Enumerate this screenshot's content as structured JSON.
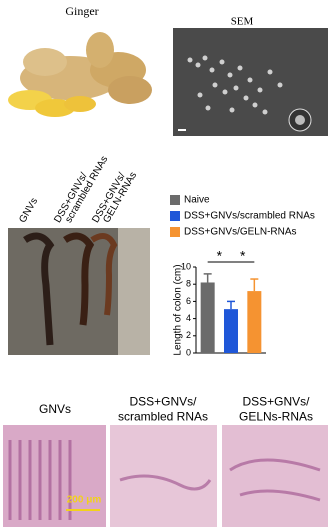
{
  "panels": {
    "ginger_label": "Ginger",
    "sem_label": "SEM",
    "colon_labels": [
      [
        "GNVs"
      ],
      [
        "DSS+GNVs/",
        "scrambled RNAs"
      ],
      [
        "DSS+GNVs/",
        "GELN-RNAs"
      ]
    ],
    "histology_labels": [
      [
        "GNVs"
      ],
      [
        "DSS+GNVs/",
        "scrambled RNAs"
      ],
      [
        "DSS+GNVs/",
        "GELNs-RNAs"
      ]
    ],
    "scale_bar": "200 μm"
  },
  "chart_data": {
    "type": "bar",
    "y_label": "Length of colon (cm)",
    "categories": [
      null
    ],
    "series": [
      {
        "name": "Naive",
        "color": "#6b6b6b",
        "values": [
          8.2
        ],
        "errors": [
          1.0
        ]
      },
      {
        "name": "DSS+GNVs/scrambled RNAs",
        "color": "#1f57d8",
        "values": [
          5.1
        ],
        "errors": [
          0.9
        ]
      },
      {
        "name": "DSS+GNVs/GELN-RNAs",
        "color": "#f59331",
        "values": [
          7.2
        ],
        "errors": [
          1.4
        ]
      }
    ],
    "annotations": [
      "*",
      "*"
    ],
    "ylim": [
      0,
      10
    ],
    "yticks": [
      0,
      2,
      4,
      6,
      8,
      10
    ]
  }
}
